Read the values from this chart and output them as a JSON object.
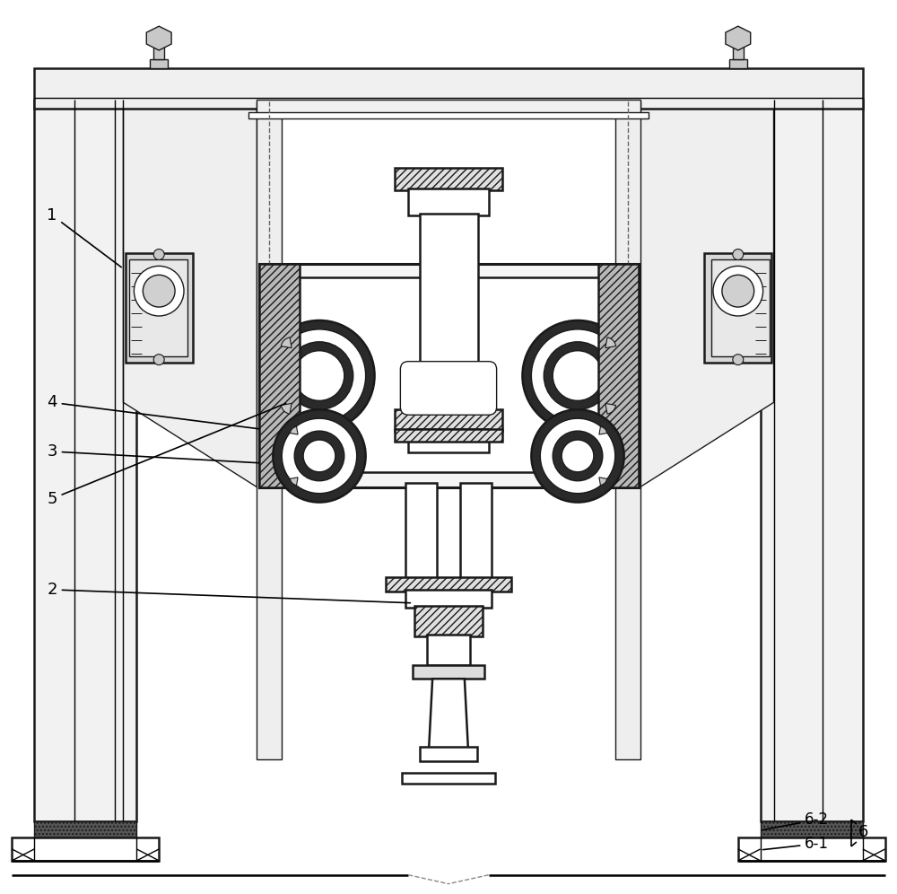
{
  "bg_color": "#ffffff",
  "line_color": "#1a1a1a",
  "gray_light": "#e8e8e8",
  "gray_mid": "#c8c8c8",
  "gray_dark": "#909090",
  "label_fontsize": 13,
  "lw_main": 1.8,
  "lw_thin": 1.0,
  "lw_thick": 2.2
}
